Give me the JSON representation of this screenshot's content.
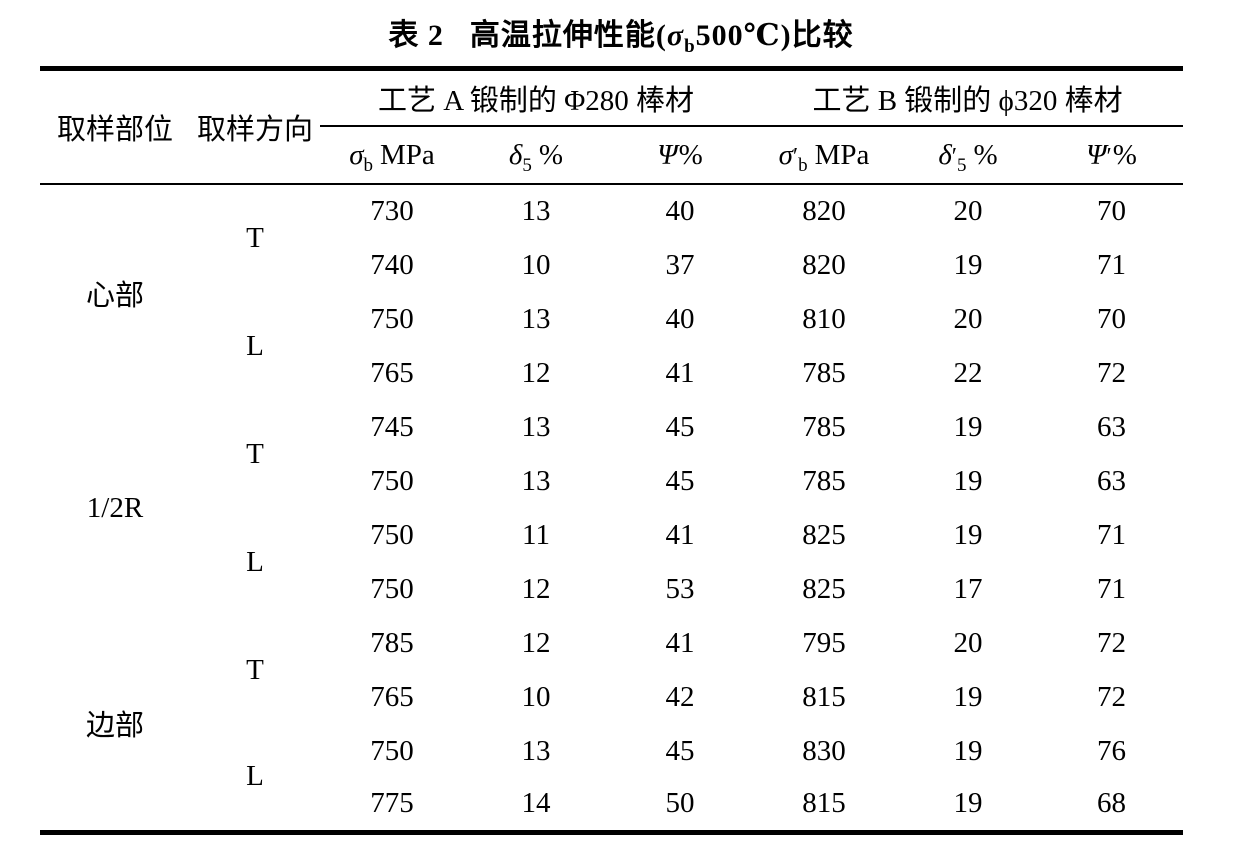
{
  "caption": {
    "label": "表 2",
    "pre": "高温拉伸性能(",
    "sigma": "σ",
    "sigma_sub": "b",
    "post": "500℃)比较"
  },
  "table": {
    "corner_headers": {
      "sample_location": "取样部位",
      "sample_direction": "取样方向"
    },
    "group_headers": {
      "process_a": "工艺 A 锻制的 Φ280 棒材",
      "process_b": "工艺 B 锻制的 ϕ320 棒材"
    },
    "subcols": [
      {
        "base": "σ",
        "prime": "",
        "sub": "b",
        "unit": "MPa"
      },
      {
        "base": "δ",
        "prime": "",
        "sub": "5",
        "unit": "%"
      },
      {
        "base": "Ψ",
        "prime": "",
        "sub": "",
        "unit": "%"
      },
      {
        "base": "σ",
        "prime": "′",
        "sub": "b",
        "unit": "MPa"
      },
      {
        "base": "δ",
        "prime": "′",
        "sub": "5",
        "unit": "%"
      },
      {
        "base": "Ψ",
        "prime": "′",
        "sub": "",
        "unit": "%"
      }
    ],
    "rows": [
      {
        "location": "心部",
        "direction": "T",
        "values": [
          "730",
          "13",
          "40",
          "820",
          "20",
          "70"
        ]
      },
      {
        "values": [
          "740",
          "10",
          "37",
          "820",
          "19",
          "71"
        ]
      },
      {
        "direction": "L",
        "values": [
          "750",
          "13",
          "40",
          "810",
          "20",
          "70"
        ]
      },
      {
        "values": [
          "765",
          "12",
          "41",
          "785",
          "22",
          "72"
        ]
      },
      {
        "location": "1/2R",
        "direction": "T",
        "values": [
          "745",
          "13",
          "45",
          "785",
          "19",
          "63"
        ]
      },
      {
        "values": [
          "750",
          "13",
          "45",
          "785",
          "19",
          "63"
        ]
      },
      {
        "direction": "L",
        "values": [
          "750",
          "11",
          "41",
          "825",
          "19",
          "71"
        ]
      },
      {
        "values": [
          "750",
          "12",
          "53",
          "825",
          "17",
          "71"
        ]
      },
      {
        "location": "边部",
        "direction": "T",
        "values": [
          "785",
          "12",
          "41",
          "795",
          "20",
          "72"
        ]
      },
      {
        "values": [
          "765",
          "10",
          "42",
          "815",
          "19",
          "72"
        ]
      },
      {
        "direction": "L",
        "values": [
          "750",
          "13",
          "45",
          "830",
          "19",
          "76"
        ]
      },
      {
        "values": [
          "775",
          "14",
          "50",
          "815",
          "19",
          "68"
        ]
      }
    ]
  }
}
